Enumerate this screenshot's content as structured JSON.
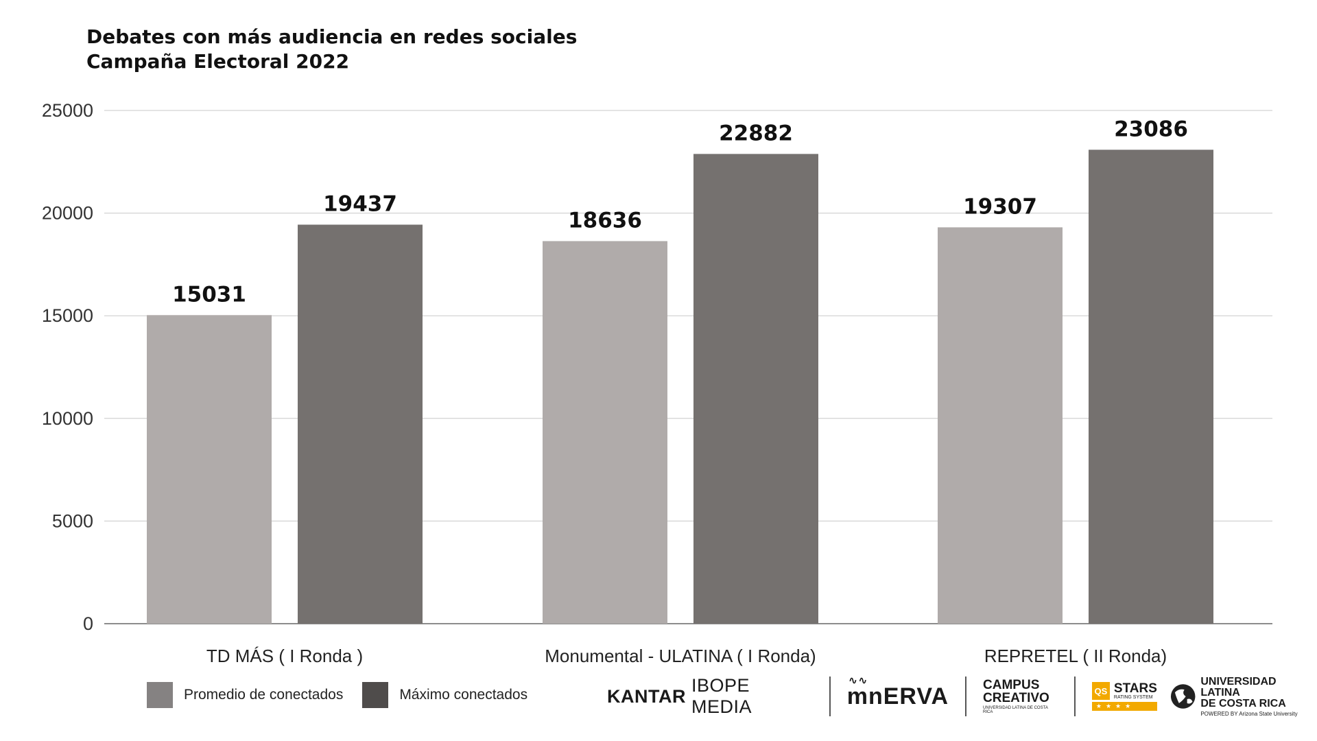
{
  "title_lines": [
    "Debates con más audiencia en redes sociales",
    "Campaña Electoral 2022"
  ],
  "chart_data": {
    "type": "bar",
    "title": "Debates con más audiencia en redes sociales\nCampaña Electoral 2022",
    "categories": [
      "TD MÁS ( I Ronda )",
      "Monumental - ULATINA ( I Ronda)",
      "REPRETEL ( II Ronda)"
    ],
    "series": [
      {
        "name": "Promedio de conectados",
        "values": [
          15031,
          18636,
          19307
        ],
        "color": "#b0abaa"
      },
      {
        "name": "Máximo conectados",
        "values": [
          19437,
          22882,
          23086
        ],
        "color": "#75716f"
      }
    ],
    "ylim": [
      0,
      25000
    ],
    "yticks": [
      0,
      5000,
      10000,
      15000,
      20000,
      25000
    ],
    "grid": true,
    "legend_position": "bottom-left",
    "data_labels": true
  },
  "legend": [
    {
      "label": "Promedio de conectados",
      "color": "#858282"
    },
    {
      "label": "Máximo conectados",
      "color": "#4f4c4b"
    }
  ],
  "logos": {
    "kantar_bold": "KANTAR",
    "kantar_regular": "IBOPE MEDIA",
    "minerva": "mnERVA",
    "campus_line1": "CAMPUS",
    "campus_line2": "CREATIVO",
    "campus_line3": "UNIVERSIDAD LATINA DE COSTA RICA",
    "qs": "QS",
    "stars": "STARS",
    "stars_sub": "RATING SYSTEM",
    "stars_row": "★★★★",
    "ulatina_line1": "UNIVERSIDAD LATINA",
    "ulatina_line2": "DE COSTA RICA",
    "ulatina_line3": "POWERED BY Arizona State University"
  }
}
